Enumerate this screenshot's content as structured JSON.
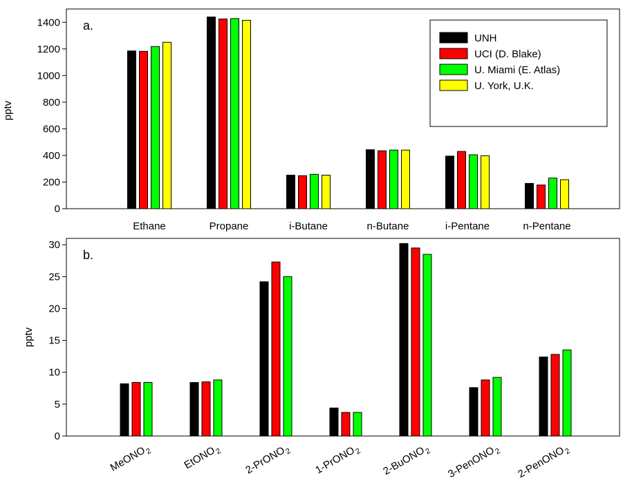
{
  "chart_data": [
    {
      "type": "bar",
      "panel_label": "a.",
      "ylabel": "pptv",
      "xlabel": "",
      "ylim": [
        0,
        1500
      ],
      "yticks": [
        0,
        200,
        400,
        600,
        800,
        1000,
        1200,
        1400
      ],
      "categories": [
        "Ethane",
        "Propane",
        "i-Butane",
        "n-Butane",
        "i-Pentane",
        "n-Pentane"
      ],
      "series": [
        {
          "name": "UNH",
          "color": "#000000",
          "values": [
            1185,
            1440,
            252,
            443,
            395,
            190
          ]
        },
        {
          "name": "UCI (D. Blake)",
          "color": "#ff0000",
          "values": [
            1182,
            1425,
            248,
            435,
            430,
            178
          ]
        },
        {
          "name": "U. Miami (E. Atlas)",
          "color": "#00ff00",
          "values": [
            1218,
            1428,
            258,
            440,
            405,
            230
          ]
        },
        {
          "name": "U. York, U.K.",
          "color": "#ffff00",
          "values": [
            1250,
            1415,
            252,
            440,
            398,
            218
          ]
        }
      ],
      "legend": "top-right",
      "grid": false
    },
    {
      "type": "bar",
      "panel_label": "b.",
      "ylabel": "pptv",
      "xlabel": "",
      "ylim": [
        0,
        31
      ],
      "yticks": [
        0,
        5,
        10,
        15,
        20,
        25,
        30
      ],
      "categories": [
        {
          "base": "MeONO",
          "sub": "2"
        },
        {
          "base": "EtONO",
          "sub": "2"
        },
        {
          "base": "2-PrONO",
          "sub": "2"
        },
        {
          "base": "1-PrONO",
          "sub": "2"
        },
        {
          "base": "2-BuONO",
          "sub": "2"
        },
        {
          "base": "3-PenONO",
          "sub": "2"
        },
        {
          "base": "2-PenONO",
          "sub": "2"
        }
      ],
      "series": [
        {
          "color": "#000000",
          "values": [
            8.2,
            8.4,
            24.2,
            4.4,
            30.2,
            7.6,
            12.4
          ]
        },
        {
          "color": "#ff0000",
          "values": [
            8.4,
            8.5,
            27.3,
            3.7,
            29.5,
            8.8,
            12.8
          ]
        },
        {
          "color": "#00ff00",
          "values": [
            8.4,
            8.8,
            25.0,
            3.7,
            28.5,
            9.2,
            13.5
          ]
        }
      ],
      "grid": false
    }
  ]
}
